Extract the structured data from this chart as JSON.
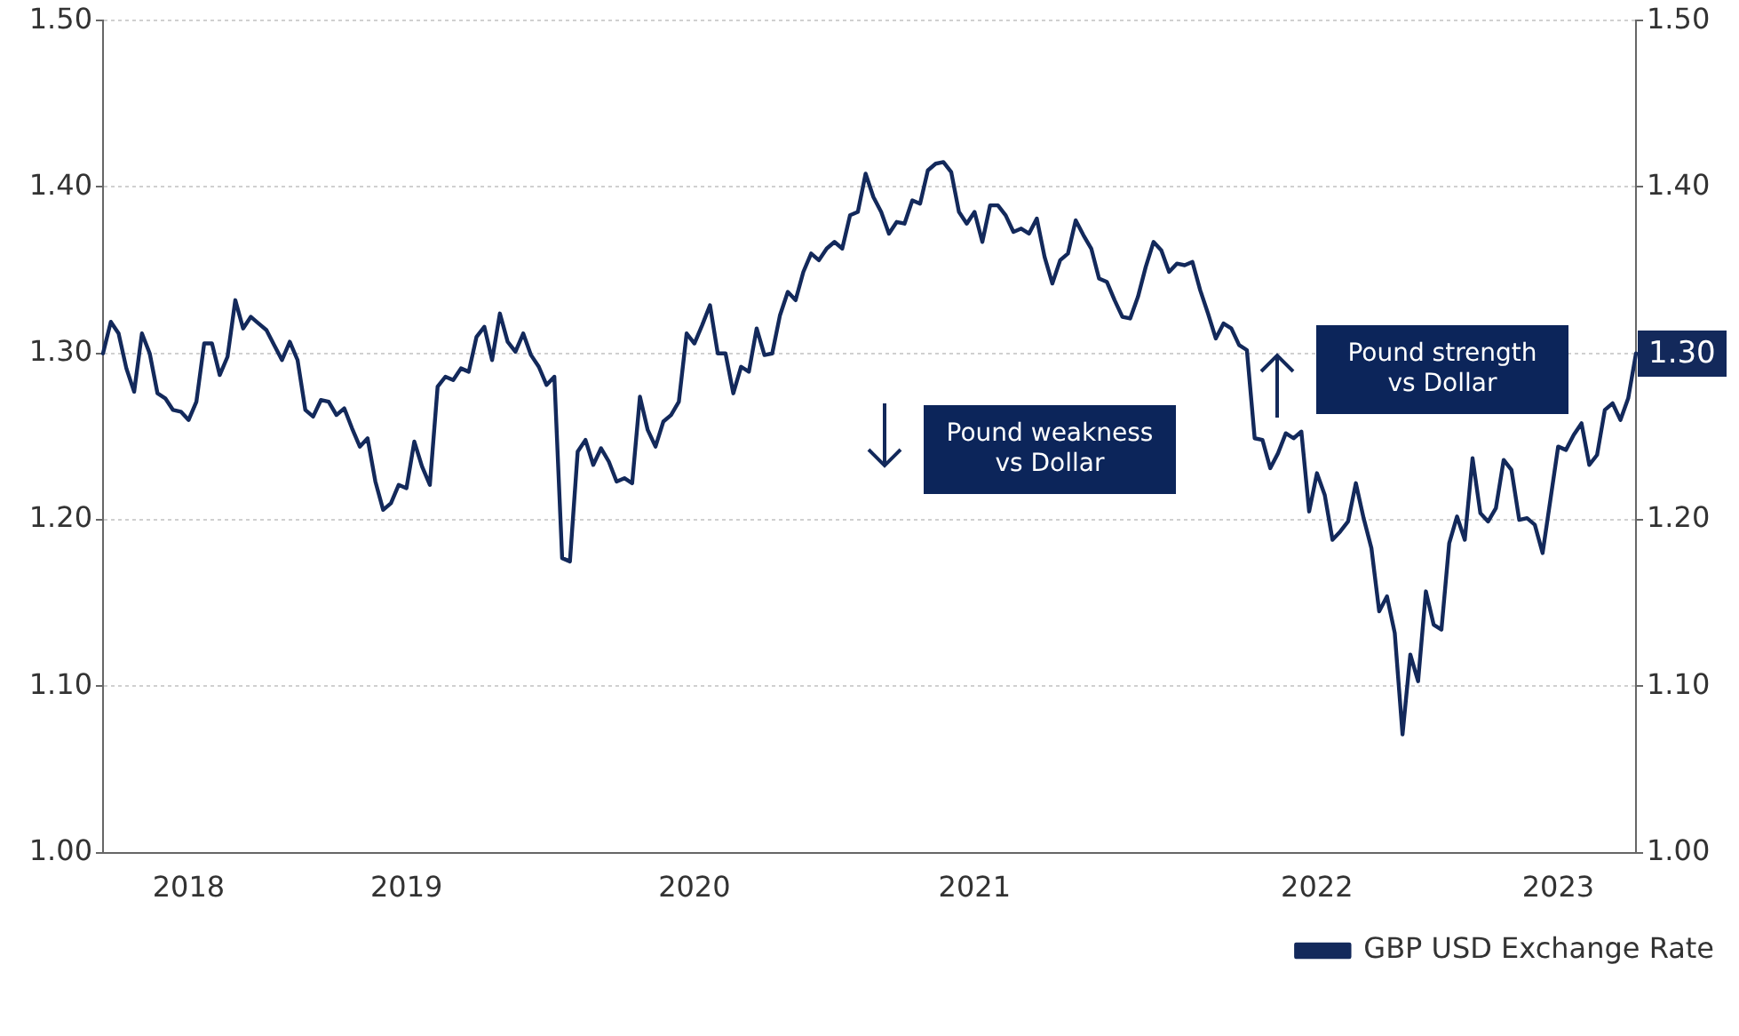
{
  "chart_data": {
    "type": "line",
    "categories": [
      null,
      null,
      null,
      null,
      null,
      null,
      null,
      null,
      null,
      null,
      null,
      "2018",
      null,
      null,
      null,
      null,
      null,
      null,
      null,
      null,
      null,
      null,
      null,
      null,
      null,
      null,
      null,
      null,
      null,
      null,
      null,
      null,
      null,
      null,
      null,
      null,
      null,
      null,
      null,
      "2019",
      null,
      null,
      null,
      null,
      null,
      null,
      null,
      null,
      null,
      null,
      null,
      null,
      null,
      null,
      null,
      null,
      null,
      null,
      null,
      null,
      null,
      null,
      null,
      null,
      null,
      null,
      null,
      null,
      null,
      null,
      null,
      null,
      null,
      null,
      null,
      null,
      "2020",
      null,
      null,
      null,
      null,
      null,
      null,
      null,
      null,
      null,
      null,
      null,
      null,
      null,
      null,
      null,
      null,
      null,
      null,
      null,
      null,
      null,
      null,
      null,
      null,
      null,
      null,
      null,
      null,
      null,
      null,
      null,
      null,
      null,
      null,
      null,
      "2021",
      null,
      null,
      null,
      null,
      null,
      null,
      null,
      null,
      null,
      null,
      null,
      null,
      null,
      null,
      null,
      null,
      null,
      null,
      null,
      null,
      null,
      null,
      null,
      null,
      null,
      null,
      null,
      null,
      null,
      null,
      null,
      null,
      null,
      null,
      null,
      null,
      null,
      null,
      null,
      null,
      null,
      null,
      null,
      "2022",
      null,
      null,
      null,
      null,
      null,
      null,
      null,
      null,
      null,
      null,
      null,
      null,
      null,
      null,
      null,
      null,
      null,
      null,
      null,
      null,
      null,
      null,
      null,
      null,
      null,
      null,
      null,
      null,
      null,
      null,
      "2023",
      null,
      null,
      null,
      null,
      null,
      null,
      null,
      null,
      null,
      null
    ],
    "ylim": [
      1,
      1.5
    ],
    "yticks": [
      {
        "value": 1,
        "label": "1.00"
      },
      {
        "value": 1.1,
        "label": "1.10"
      },
      {
        "value": 1.2,
        "label": "1.20"
      },
      {
        "value": 1.3,
        "label": "1.30"
      },
      {
        "value": 1.4,
        "label": "1.40"
      },
      {
        "value": 1.5,
        "label": "1.50"
      }
    ],
    "y2lim": [
      1,
      1.5
    ],
    "y2ticks": [
      {
        "value": 1,
        "label": "1.00"
      },
      {
        "value": 1.1,
        "label": "1.10"
      },
      {
        "value": 1.2,
        "label": "1.20"
      },
      {
        "value": 1.3,
        "label": null
      },
      {
        "value": 1.4,
        "label": "1.40"
      },
      {
        "value": 1.5,
        "label": "1.50"
      }
    ],
    "grid": "y",
    "legend": "bottom right",
    "marker": "none",
    "line_style": "solid",
    "annotations": [
      "Pound weakness\nvs Dollar",
      "Pound strength\nvs Dollar"
    ],
    "series": [
      {
        "name": "GBP USD Exchange Rate",
        "color": "#13295b",
        "values": [
          1.3,
          1.319,
          1.312,
          1.291,
          1.277,
          1.312,
          1.3,
          1.276,
          1.273,
          1.266,
          1.265,
          1.26,
          1.271,
          1.306,
          1.306,
          1.287,
          1.298,
          1.332,
          1.315,
          1.322,
          1.318,
          1.314,
          1.305,
          1.296,
          1.307,
          1.296,
          1.266,
          1.262,
          1.272,
          1.271,
          1.263,
          1.267,
          1.255,
          1.244,
          1.249,
          1.223,
          1.206,
          1.21,
          1.221,
          1.219,
          1.247,
          1.232,
          1.221,
          1.28,
          1.286,
          1.284,
          1.291,
          1.289,
          1.31,
          1.316,
          1.296,
          1.324,
          1.307,
          1.301,
          1.312,
          1.299,
          1.292,
          1.281,
          1.286,
          1.177,
          1.175,
          1.241,
          1.248,
          1.233,
          1.243,
          1.235,
          1.223,
          1.225,
          1.222,
          1.274,
          1.254,
          1.244,
          1.259,
          1.263,
          1.271,
          1.312,
          1.306,
          1.317,
          1.329,
          1.3,
          1.3,
          1.276,
          1.292,
          1.289,
          1.315,
          1.299,
          1.3,
          1.323,
          1.337,
          1.332,
          1.349,
          1.36,
          1.356,
          1.363,
          1.367,
          1.363,
          1.383,
          1.385,
          1.408,
          1.394,
          1.385,
          1.372,
          1.379,
          1.378,
          1.392,
          1.39,
          1.41,
          1.414,
          1.415,
          1.409,
          1.385,
          1.378,
          1.385,
          1.367,
          1.389,
          1.389,
          1.383,
          1.373,
          1.375,
          1.372,
          1.381,
          1.358,
          1.342,
          1.356,
          1.36,
          1.38,
          1.371,
          1.363,
          1.345,
          1.343,
          1.332,
          1.322,
          1.321,
          1.334,
          1.352,
          1.367,
          1.362,
          1.349,
          1.354,
          1.353,
          1.355,
          1.338,
          1.324,
          1.309,
          1.318,
          1.315,
          1.305,
          1.302,
          1.249,
          1.248,
          1.231,
          1.24,
          1.252,
          1.249,
          1.253,
          1.205,
          1.228,
          1.215,
          1.188,
          1.193,
          1.199,
          1.222,
          1.201,
          1.183,
          1.145,
          1.154,
          1.132,
          1.071,
          1.119,
          1.103,
          1.157,
          1.137,
          1.134,
          1.186,
          1.202,
          1.188,
          1.237,
          1.204,
          1.199,
          1.207,
          1.236,
          1.23,
          1.2,
          1.201,
          1.197,
          1.18,
          1.212,
          1.244,
          1.242,
          1.251,
          1.258,
          1.233,
          1.239,
          1.266,
          1.27,
          1.26,
          1.273,
          1.3
        ],
        "value_labels": [
          null,
          null,
          null,
          null,
          null,
          null,
          null,
          null,
          null,
          null,
          null,
          null,
          null,
          null,
          null,
          null,
          null,
          null,
          null,
          null,
          null,
          null,
          null,
          null,
          null,
          null,
          null,
          null,
          null,
          null,
          null,
          null,
          null,
          null,
          null,
          null,
          null,
          null,
          null,
          null,
          null,
          null,
          null,
          null,
          null,
          null,
          null,
          null,
          null,
          null,
          null,
          null,
          null,
          null,
          null,
          null,
          null,
          null,
          null,
          null,
          null,
          null,
          null,
          null,
          null,
          null,
          null,
          null,
          null,
          null,
          null,
          null,
          null,
          null,
          null,
          null,
          null,
          null,
          null,
          null,
          null,
          null,
          null,
          null,
          null,
          null,
          null,
          null,
          null,
          null,
          null,
          null,
          null,
          null,
          null,
          null,
          null,
          null,
          null,
          null,
          null,
          null,
          null,
          null,
          null,
          null,
          null,
          null,
          null,
          null,
          null,
          null,
          null,
          null,
          null,
          null,
          null,
          null,
          null,
          null,
          null,
          null,
          null,
          null,
          null,
          null,
          null,
          null,
          null,
          null,
          null,
          null,
          null,
          null,
          null,
          null,
          null,
          null,
          null,
          null,
          null,
          null,
          null,
          null,
          null,
          null,
          null,
          null,
          null,
          null,
          null,
          null,
          null,
          null,
          null,
          null,
          null,
          null,
          null,
          null,
          null,
          null,
          null,
          null,
          null,
          null,
          null,
          null,
          null,
          null,
          null,
          null,
          null,
          null,
          null,
          null,
          null,
          null,
          null,
          null,
          null,
          null,
          null,
          null,
          null,
          null,
          null,
          null,
          null,
          null,
          null,
          null,
          null,
          null,
          null,
          null,
          null,
          "1.30"
        ]
      }
    ]
  }
}
